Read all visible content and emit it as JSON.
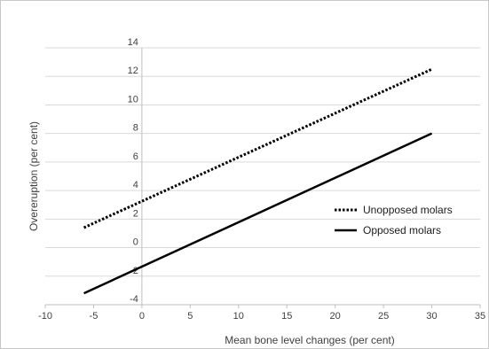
{
  "chart_data": {
    "type": "line",
    "title": "",
    "xlabel": "Mean bone level changes (per cent)",
    "ylabel": "Overeruption  (per cent)",
    "xlim": [
      -10,
      35
    ],
    "ylim": [
      -4,
      14
    ],
    "x_ticks": [
      -10,
      -5,
      0,
      5,
      10,
      15,
      20,
      25,
      30,
      35
    ],
    "y_ticks": [
      -4,
      -2,
      0,
      2,
      4,
      6,
      8,
      10,
      12,
      14
    ],
    "x_tick_labels": [
      "-10",
      "-5",
      "0",
      "5",
      "10",
      "15",
      "20",
      "25",
      "30",
      "35"
    ],
    "y_tick_labels": [
      "-4",
      "-2",
      "0",
      "2",
      "4",
      "6",
      "8",
      "10",
      "12",
      "14"
    ],
    "grid": "horizontal",
    "legend_position": "right",
    "series": [
      {
        "name": "Unopposed molars",
        "style": "dotted",
        "color": "#000000",
        "x": [
          -6,
          30
        ],
        "y": [
          1.4,
          12.5
        ]
      },
      {
        "name": "Opposed molars",
        "style": "solid",
        "color": "#000000",
        "x": [
          -6,
          30
        ],
        "y": [
          -3.2,
          8
        ]
      }
    ]
  }
}
